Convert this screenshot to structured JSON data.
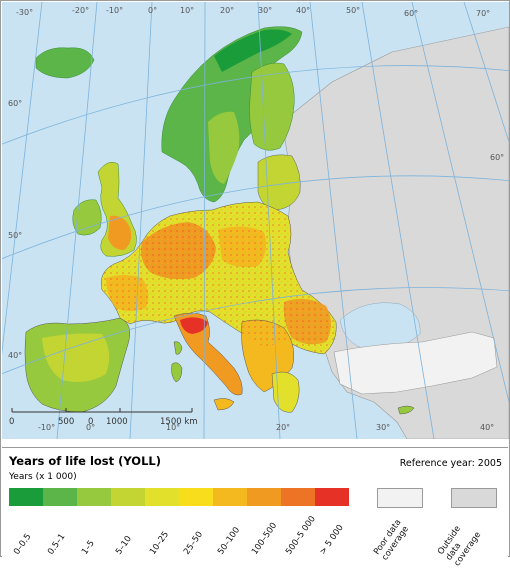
{
  "map": {
    "longitude_labels": [
      "-30°",
      "-20°",
      "-10°",
      "0°",
      "10°",
      "20°",
      "30°",
      "40°",
      "50°",
      "60°",
      "70°"
    ],
    "latitude_labels": [
      "60°",
      "50°",
      "40°"
    ],
    "bottom_longitude_labels": [
      "-10°",
      "0°",
      "10°",
      "20°",
      "30°",
      "40°"
    ],
    "scale_labels": [
      "0",
      "500",
      "0",
      "1000",
      "1500 km"
    ],
    "colors": {
      "sea": "#c9e3f3",
      "outside": "#d9d9d9",
      "poor_data": "#f2f2f2",
      "border": "#555555"
    }
  },
  "legend": {
    "title": "Years of life lost (YOLL)",
    "subtitle": "Years (x 1 000)",
    "reference_year": "Reference year: 2005",
    "classes": [
      {
        "label": "0–0.5",
        "color": "#1a9c3a"
      },
      {
        "label": "0.5–1",
        "color": "#5cb548"
      },
      {
        "label": "1–5",
        "color": "#96c93d"
      },
      {
        "label": "5–10",
        "color": "#c2d532"
      },
      {
        "label": "10–25",
        "color": "#e3e02b"
      },
      {
        "label": "25–50",
        "color": "#f8dd1c"
      },
      {
        "label": "50–100",
        "color": "#f4b91f"
      },
      {
        "label": "100–500",
        "color": "#f19a22"
      },
      {
        "label": "500–5 000",
        "color": "#ed7424"
      },
      {
        "label": "> 5 000",
        "color": "#e53126"
      }
    ],
    "special": [
      {
        "label_lines": [
          "Poor data",
          "coverage"
        ],
        "color": "#f2f2f2"
      },
      {
        "label_lines": [
          "Outside",
          "data",
          "coverage"
        ],
        "color": "#d9d9d9"
      }
    ]
  }
}
